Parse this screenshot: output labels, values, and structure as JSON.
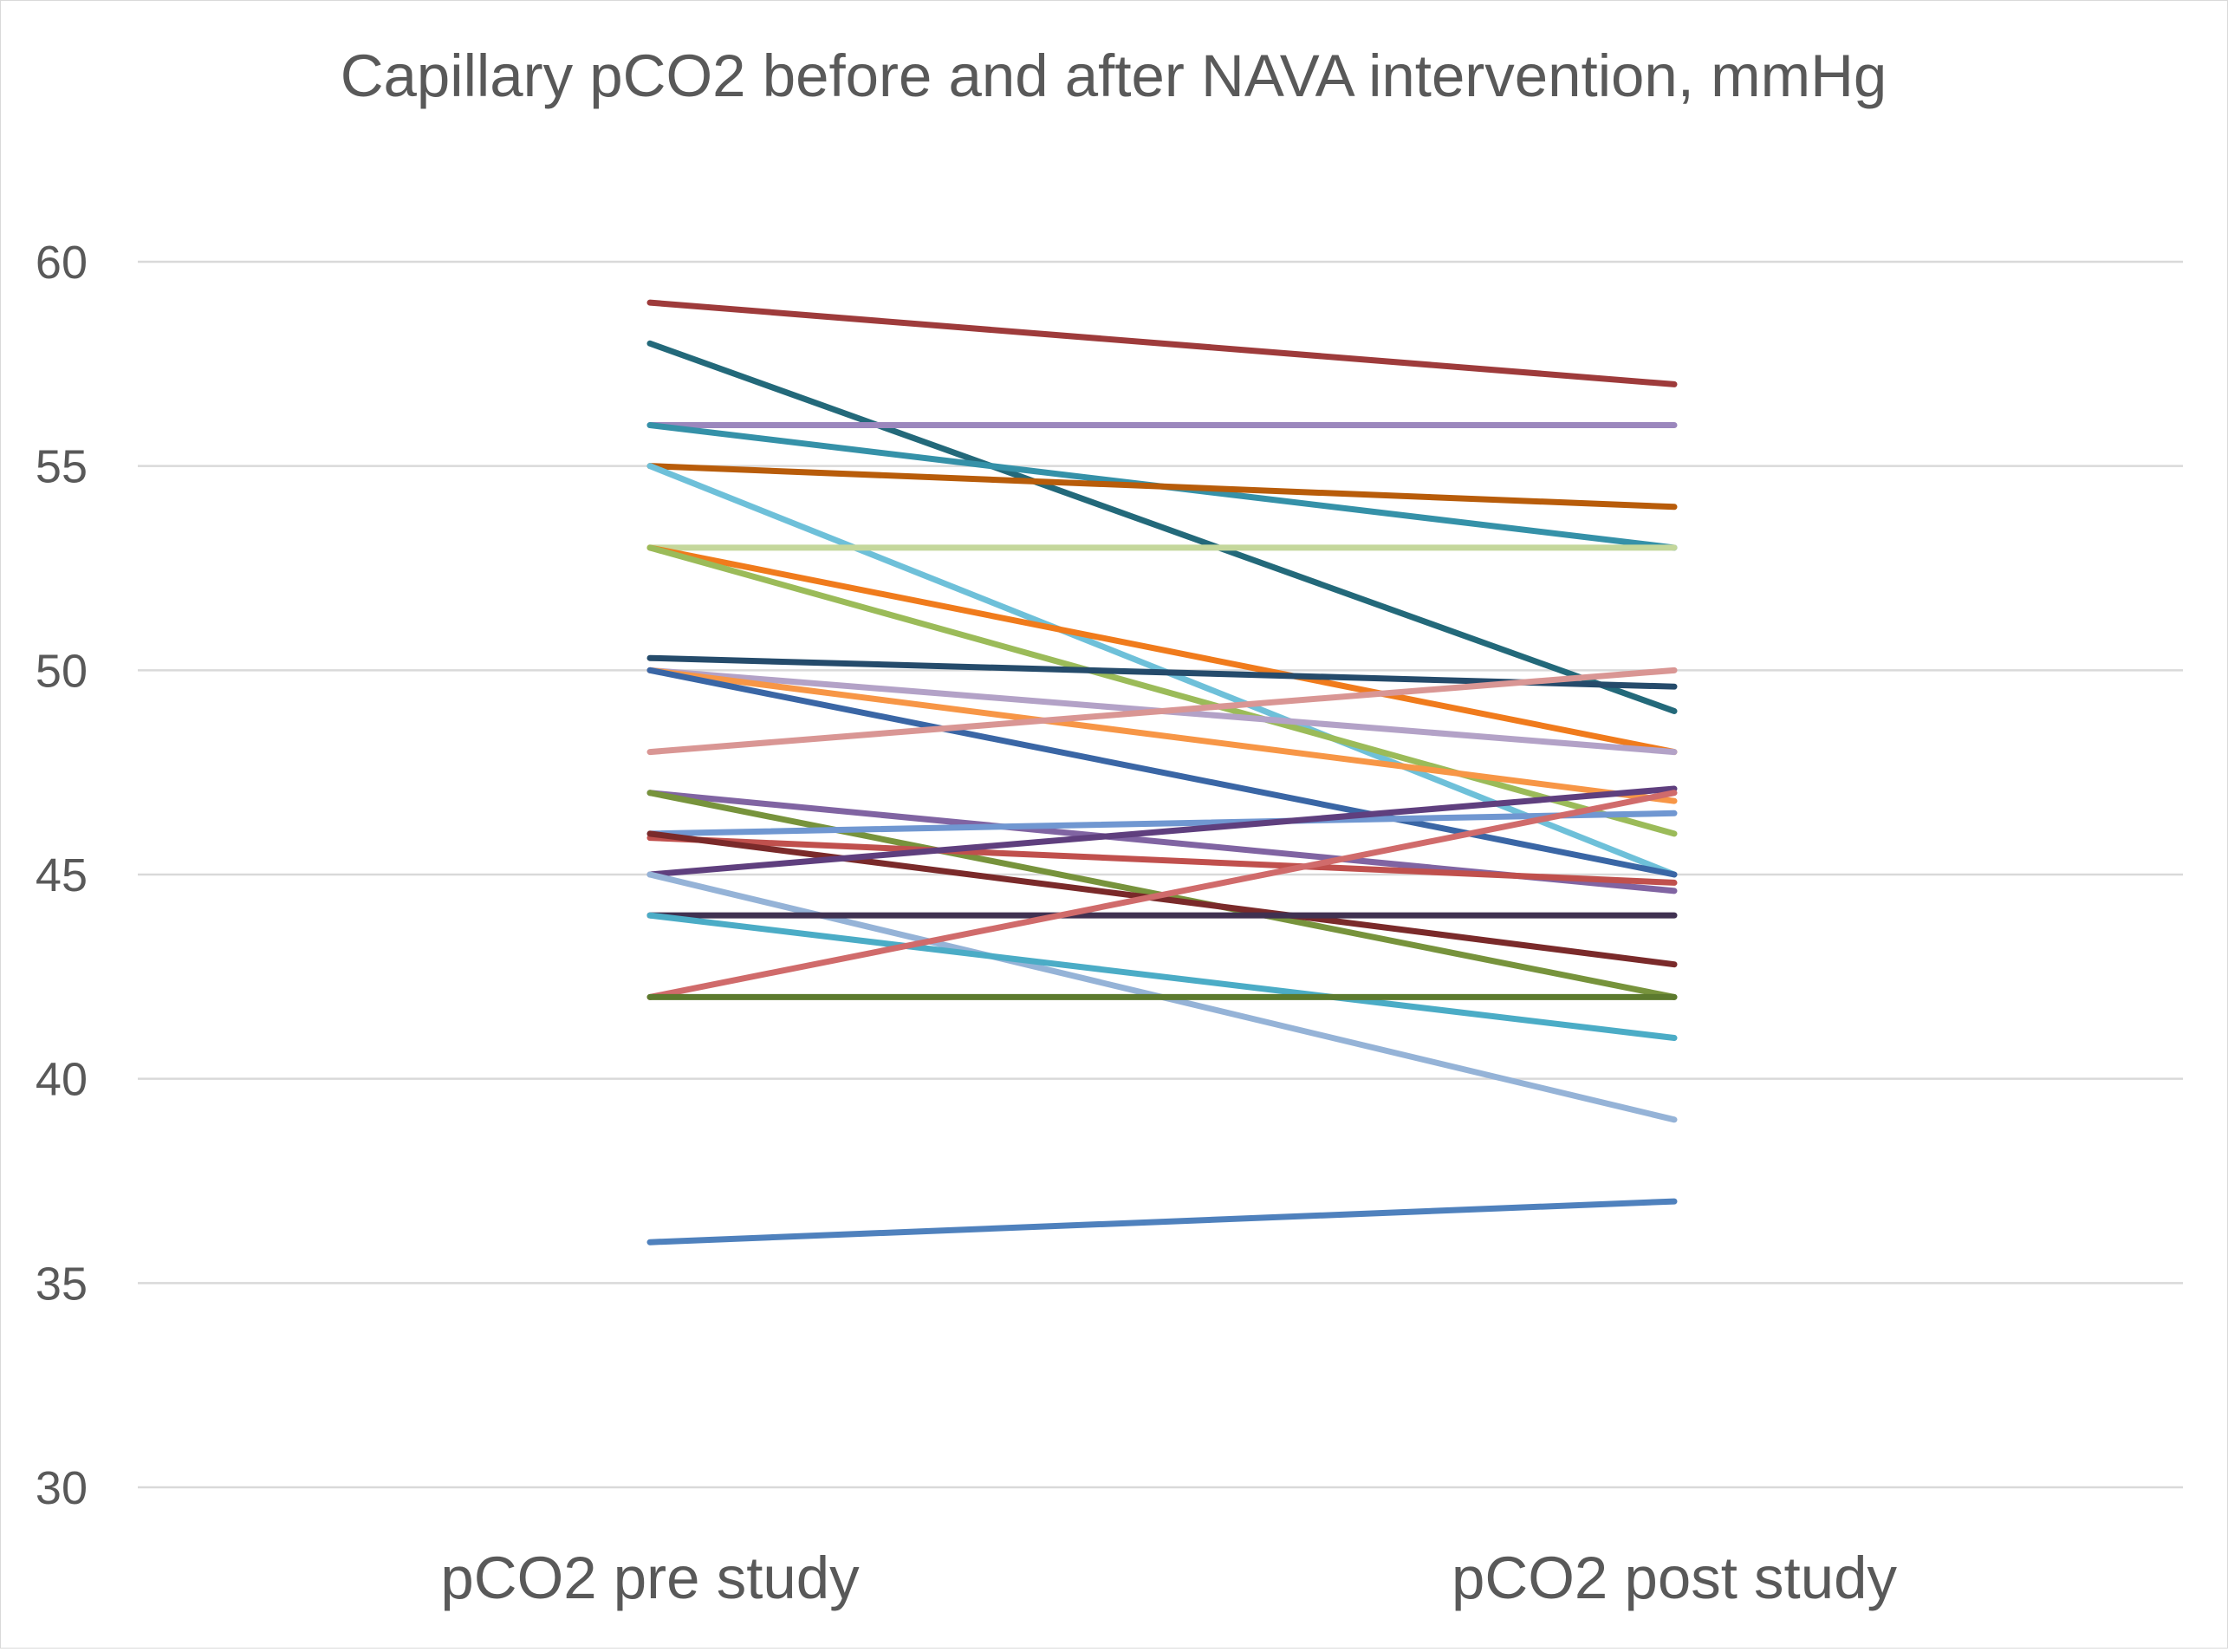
{
  "chart_data": {
    "type": "line",
    "title": "Capillary pCO2 before and after NAVA intervention, mmHg",
    "xlabel": "",
    "ylabel": "",
    "categories": [
      "pCO2 pre study",
      "pCO2 post study"
    ],
    "ylim": [
      30,
      60
    ],
    "yticks": [
      30,
      35,
      40,
      45,
      50,
      55,
      60
    ],
    "grid": true,
    "legend": "none",
    "series": [
      {
        "values": [
          59,
          57
        ],
        "color": "#9e3b3b"
      },
      {
        "values": [
          58,
          49
        ],
        "color": "#23697a"
      },
      {
        "values": [
          56,
          56
        ],
        "color": "#9b87bd"
      },
      {
        "values": [
          56,
          53
        ],
        "color": "#3591a8"
      },
      {
        "values": [
          55,
          54
        ],
        "color": "#b85c0a"
      },
      {
        "values": [
          55,
          45
        ],
        "color": "#6ec0d9"
      },
      {
        "values": [
          53,
          53
        ],
        "color": "#c4d79b"
      },
      {
        "values": [
          53,
          48
        ],
        "color": "#f07b1c"
      },
      {
        "values": [
          53,
          46
        ],
        "color": "#9bbb59"
      },
      {
        "values": [
          50.3,
          49.6
        ],
        "color": "#254b6b"
      },
      {
        "values": [
          50,
          48
        ],
        "color": "#b3a2c7"
      },
      {
        "values": [
          50,
          46.8
        ],
        "color": "#f79646"
      },
      {
        "values": [
          50,
          45
        ],
        "color": "#3a66a5"
      },
      {
        "values": [
          48,
          50
        ],
        "color": "#d99694"
      },
      {
        "values": [
          47,
          44.6
        ],
        "color": "#8064a2"
      },
      {
        "values": [
          47,
          42
        ],
        "color": "#77933c"
      },
      {
        "values": [
          46,
          46.5
        ],
        "color": "#7097d1"
      },
      {
        "values": [
          45.9,
          44.8
        ],
        "color": "#c0504d"
      },
      {
        "values": [
          46,
          42.8
        ],
        "color": "#7a2a2a"
      },
      {
        "values": [
          45,
          47.1
        ],
        "color": "#5f3f7e"
      },
      {
        "values": [
          45,
          39
        ],
        "color": "#95b3d7"
      },
      {
        "values": [
          44,
          44
        ],
        "color": "#403151"
      },
      {
        "values": [
          44,
          41
        ],
        "color": "#4bacc6"
      },
      {
        "values": [
          42,
          47
        ],
        "color": "#d06b6b"
      },
      {
        "values": [
          42,
          42
        ],
        "color": "#5c7a2e"
      },
      {
        "values": [
          36,
          37
        ],
        "color": "#4f81bd"
      }
    ]
  }
}
